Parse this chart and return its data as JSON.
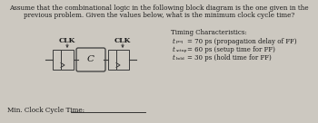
{
  "title_line1": "Assume that the combinational logic in the following block diagram is the one given in the",
  "title_line2": "previous problem. Given the values below, what is the minimum clock cycle time?",
  "clk_label1": "CLK",
  "clk_label2": "CLK",
  "timing_title": "Timing Characteristics:",
  "t_pcq_val": "= 70 ps (propagation delay of FF)",
  "t_setup_val": "= 60 ps (setup time for FF)",
  "t_hold_val": "= 30 ps (hold time for FF)",
  "t_pcq_sub": "pcq",
  "t_setup_sub": "setup",
  "t_hold_sub": "hold",
  "min_label": "Min. Clock Cycle Time:",
  "bg_color": "#ccc8c0",
  "text_color": "#1a1a1a",
  "box_edge": "#3a3a3a"
}
